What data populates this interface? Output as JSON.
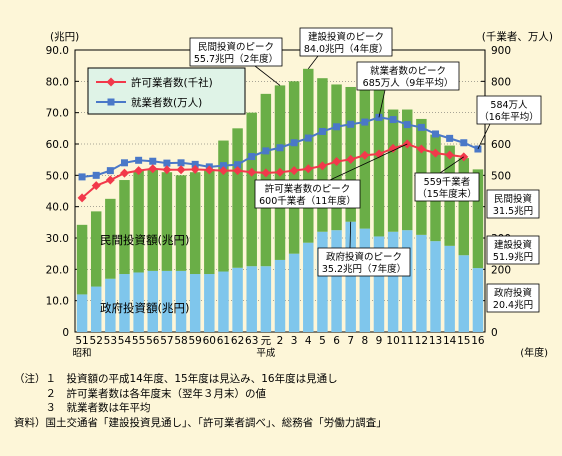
{
  "chart_data": {
    "type": "bar",
    "categories": [
      "51",
      "52",
      "53",
      "54",
      "55",
      "56",
      "57",
      "58",
      "59",
      "60",
      "61",
      "62",
      "63",
      "元",
      "2",
      "3",
      "4",
      "5",
      "6",
      "7",
      "8",
      "9",
      "10",
      "11",
      "12",
      "13",
      "14",
      "15",
      "16"
    ],
    "era_labels": {
      "first": "昭和",
      "heisei": "平成"
    },
    "series": [
      {
        "name": "政府投資額(兆円)",
        "values": [
          12.0,
          14.5,
          17.0,
          18.5,
          19.0,
          19.5,
          19.5,
          19.5,
          18.5,
          18.5,
          19.3,
          20.5,
          21.0,
          21.0,
          23.0,
          25.0,
          28.5,
          32.0,
          32.5,
          35.2,
          33.0,
          30.5,
          32.0,
          32.5,
          31.0,
          29.0,
          27.5,
          24.5,
          20.4
        ]
      },
      {
        "name": "民間投資額(兆円)",
        "values": [
          22.2,
          24.0,
          25.5,
          30.0,
          32.5,
          32.5,
          31.5,
          30.5,
          32.5,
          33.5,
          41.8,
          44.5,
          49.0,
          55.0,
          55.7,
          55.0,
          55.5,
          49.0,
          46.5,
          43.0,
          46.0,
          52.5,
          39.0,
          38.5,
          37.0,
          34.0,
          32.0,
          31.0,
          31.5
        ]
      },
      {
        "name": "許可業者数(千社)",
        "values": [
          428,
          467,
          485,
          507,
          515,
          521,
          518,
          518,
          519,
          517,
          515,
          515,
          510,
          508,
          510,
          515,
          521,
          530,
          544,
          551,
          564,
          568,
          586,
          600,
          584,
          571,
          565,
          559,
          null
        ]
      },
      {
        "name": "就業者数(万人)",
        "values": [
          495,
          500,
          515,
          540,
          548,
          545,
          539,
          540,
          535,
          527,
          531,
          534,
          560,
          578,
          588,
          604,
          619,
          640,
          655,
          663,
          670,
          685,
          678,
          662,
          653,
          632,
          618,
          604,
          584
        ]
      }
    ],
    "bar_total_values": [
      34.2,
      38.5,
      42.5,
      48.5,
      51.5,
      52.0,
      51.0,
      50.0,
      51.0,
      52.0,
      61.1,
      65.0,
      70.0,
      76.0,
      78.7,
      80.0,
      84.0,
      81.0,
      79.0,
      78.2,
      79.0,
      83.0,
      71.0,
      71.0,
      68.0,
      63.0,
      59.5,
      55.5,
      51.9
    ],
    "left_axis": {
      "unit": "(兆円)",
      "ticks": [
        "0",
        "10.0",
        "20.0",
        "30.0",
        "40.0",
        "50.0",
        "60.0",
        "70.0",
        "80.0",
        "90.0"
      ],
      "ylim": [
        0,
        90
      ]
    },
    "right_axis": {
      "unit": "(千業者、万人)",
      "ticks": [
        "0",
        "100",
        "200",
        "300",
        "400",
        "500",
        "600",
        "700",
        "800",
        "900"
      ],
      "ylim": [
        0,
        900
      ]
    },
    "x_unit": "(年度)",
    "legend": [
      "許可業者数(千社)",
      "就業者数(万人)"
    ],
    "area_labels": [
      "民間投資額(兆円)",
      "政府投資額(兆円)"
    ],
    "annotations": [
      {
        "lines": [
          "民間投資のピーク",
          "55.7兆円（2年度）"
        ]
      },
      {
        "lines": [
          "建設投資のピーク",
          "84.0兆円（4年度）"
        ]
      },
      {
        "lines": [
          "就業者数のピーク",
          "685万人（9年平均）"
        ]
      },
      {
        "lines": [
          "584万人",
          "（16年平均）"
        ]
      },
      {
        "lines": [
          "許可業者数のピーク",
          "600千業者（11年度）"
        ]
      },
      {
        "lines": [
          "559千業者",
          "（15年度末）"
        ]
      },
      {
        "lines": [
          "民間投資",
          "31.5兆円"
        ]
      },
      {
        "lines": [
          "建設投資",
          "51.9兆円"
        ]
      },
      {
        "lines": [
          "政府投資のピーク",
          "35.2兆円（7年度）"
        ]
      },
      {
        "lines": [
          "政府投資",
          "20.4兆円"
        ]
      }
    ],
    "colors": {
      "government": "#7fc6ec",
      "private": "#6aae47",
      "licensed": "#f2394b",
      "workers": "#4a78c8",
      "background": "#fdf6d8",
      "legend_box": "#dff3e7"
    }
  },
  "notes": [
    "（注）１　投資額の平成14年度、15年度は見込み、16年度は見通し",
    "　　　２　許可業者数は各年度末（翌年３月末）の値",
    "　　　３　就業者数は年平均",
    "資料）国土交通省「建設投資見通し」、「許可業者調べ」、総務省「労働力調査」"
  ]
}
